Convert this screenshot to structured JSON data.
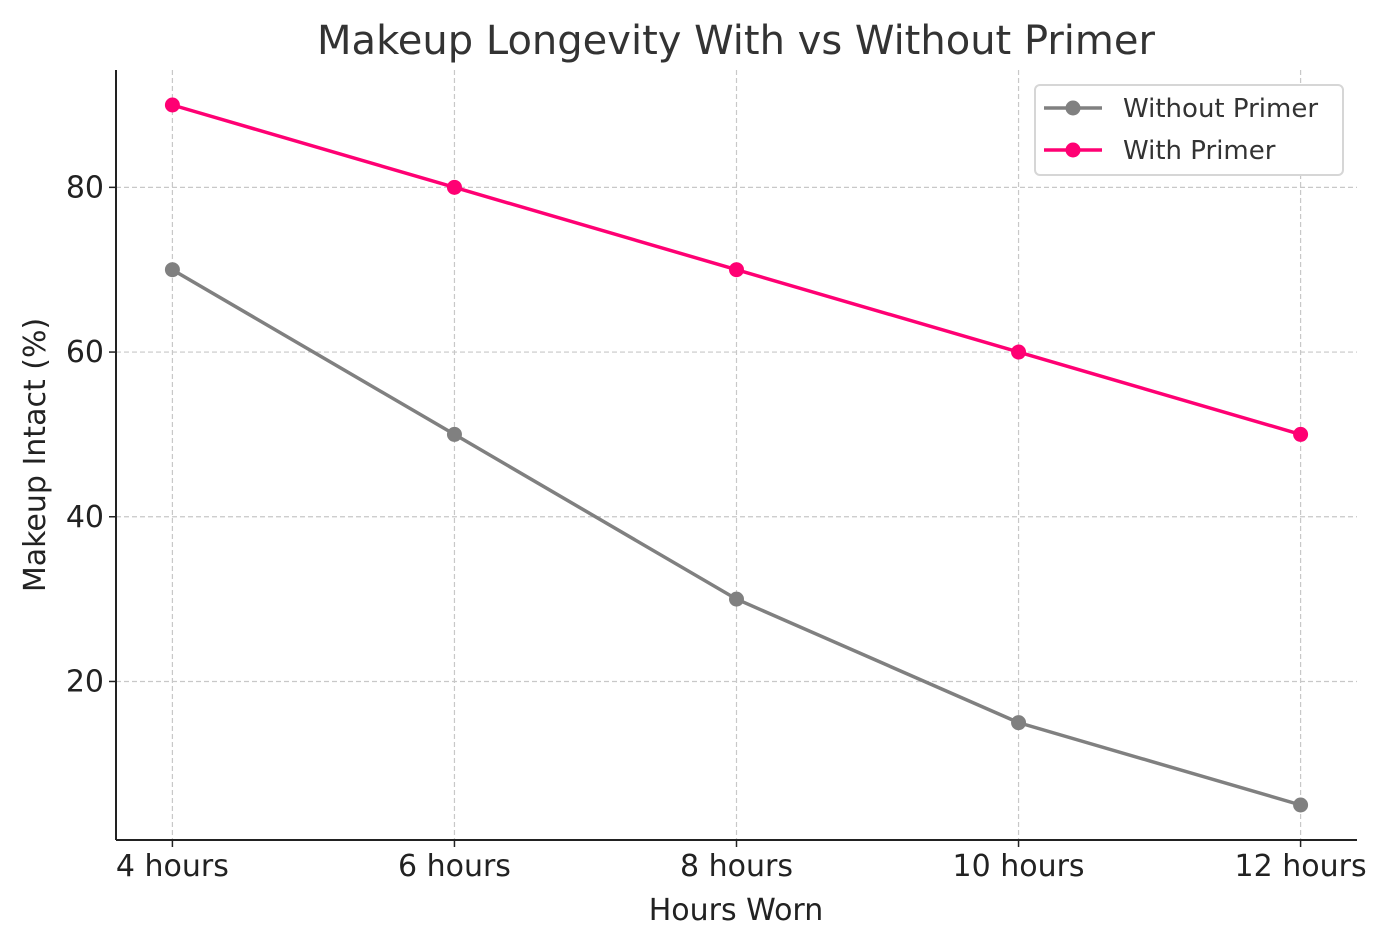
{
  "chart_data": {
    "type": "line",
    "title": "Makeup Longevity With vs Without Primer",
    "xlabel": "Hours Worn",
    "ylabel": "Makeup Intact (%)",
    "categories": [
      "4 hours",
      "6 hours",
      "8 hours",
      "10 hours",
      "12 hours"
    ],
    "yticks": [
      20,
      40,
      60,
      80
    ],
    "ylim": [
      0.75,
      94.25
    ],
    "grid": true,
    "legend_position": "top-right",
    "series": [
      {
        "name": "Without Primer",
        "color": "#808080",
        "values": [
          70,
          50,
          30,
          15,
          5
        ]
      },
      {
        "name": "With Primer",
        "color": "#ff0073",
        "values": [
          90,
          80,
          70,
          60,
          50
        ]
      }
    ]
  }
}
